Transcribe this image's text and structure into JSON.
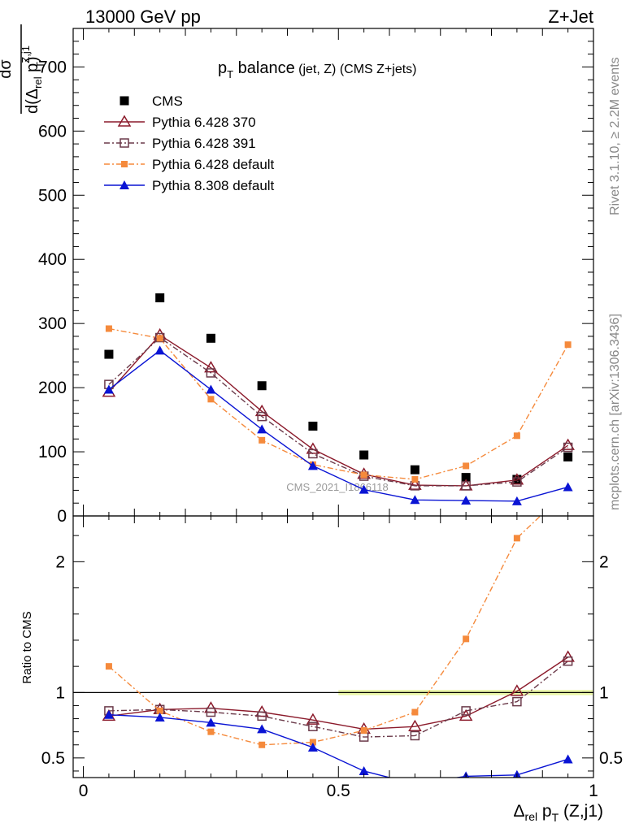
{
  "header": {
    "left": "13000 GeV pp",
    "right": "Z+Jet"
  },
  "side_labels": {
    "rivet": "Rivet 3.1.10, ≥ 2.2M events",
    "mcplots": "mcplots.cern.ch [arXiv:1306.3436]"
  },
  "watermark": "CMS_2021_I1866118",
  "chart_data": [
    {
      "type": "scatter",
      "title": {
        "main": "p",
        "sub": "T",
        "rest": " balance",
        "small": " (jet, Z) (CMS Z+jets)"
      },
      "ylabel": {
        "num": "dσ",
        "den_a": "d(Δ",
        "den_sub": "rel",
        "den_b": " p",
        "den_sup": "Z,j1",
        "den_sub2": "T",
        "den_c": ")"
      },
      "ylim": [
        0,
        760
      ],
      "xlim": [
        -0.02,
        1.0
      ],
      "yticks": [
        0,
        100,
        200,
        300,
        400,
        500,
        600,
        700
      ],
      "ytick_labels": [
        "0",
        "100",
        "200",
        "300",
        "400",
        "500",
        "600",
        "700"
      ],
      "legend_position": "top-left",
      "x": [
        0.05,
        0.15,
        0.25,
        0.35,
        0.45,
        0.55,
        0.65,
        0.75,
        0.85,
        0.95
      ],
      "series": [
        {
          "name": "CMS",
          "color": "#000000",
          "marker": "square",
          "line": "none",
          "values": [
            252,
            340,
            277,
            203,
            140,
            95,
            72,
            60,
            57,
            92
          ]
        },
        {
          "name": "Pythia 6.428 370",
          "color": "#8b1a2b",
          "marker": "triangle-open",
          "line": "solid",
          "values": [
            193,
            282,
            231,
            163,
            104,
            65,
            48,
            47,
            56,
            110
          ]
        },
        {
          "name": "Pythia 6.428 391",
          "color": "#6b3a4a",
          "marker": "square-open",
          "line": "dashdot",
          "values": [
            205,
            278,
            223,
            155,
            97,
            62,
            47,
            47,
            53,
            107
          ]
        },
        {
          "name": "Pythia 6.428 default",
          "color": "#f58a3c",
          "marker": "square-small",
          "line": "dashdot",
          "values": [
            292,
            277,
            182,
            118,
            80,
            64,
            57,
            78,
            125,
            267
          ]
        },
        {
          "name": "Pythia 8.308 default",
          "color": "#0a14d4",
          "marker": "triangle",
          "line": "solid",
          "values": [
            197,
            258,
            197,
            135,
            78,
            41,
            25,
            24,
            23,
            45
          ]
        }
      ]
    },
    {
      "type": "line",
      "ylabel": "Ratio to CMS",
      "xlabel": {
        "a": "Δ",
        "sub": "rel",
        "b": " p",
        "sub2": "T",
        "c": " (Z,j1)"
      },
      "ylim": [
        0.35,
        2.35
      ],
      "xlim": [
        -0.02,
        1.0
      ],
      "yticks": [
        0.5,
        1,
        2
      ],
      "ytick_labels": [
        "0.5",
        "1",
        "2"
      ],
      "xticks": [
        0,
        0.5,
        1
      ],
      "xtick_labels": [
        "0",
        "0.5",
        "1"
      ],
      "x": [
        0.05,
        0.15,
        0.25,
        0.35,
        0.45,
        0.55,
        0.65,
        0.75,
        0.85,
        0.95
      ],
      "series": [
        {
          "name": "Pythia 6.428 370",
          "values": [
            0.82,
            0.87,
            0.88,
            0.85,
            0.79,
            0.72,
            0.74,
            0.82,
            1.01,
            1.27
          ]
        },
        {
          "name": "Pythia 6.428 391",
          "values": [
            0.86,
            0.87,
            0.85,
            0.82,
            0.74,
            0.66,
            0.67,
            0.86,
            0.93,
            1.24
          ]
        },
        {
          "name": "Pythia 6.428 default",
          "values": [
            1.2,
            0.86,
            0.7,
            0.6,
            0.62,
            0.71,
            0.85,
            1.41,
            2.18,
            2.55
          ]
        },
        {
          "name": "Pythia 8.308 default",
          "values": [
            0.83,
            0.81,
            0.77,
            0.72,
            0.58,
            0.4,
            0.3,
            0.36,
            0.37,
            0.49
          ]
        }
      ]
    }
  ]
}
